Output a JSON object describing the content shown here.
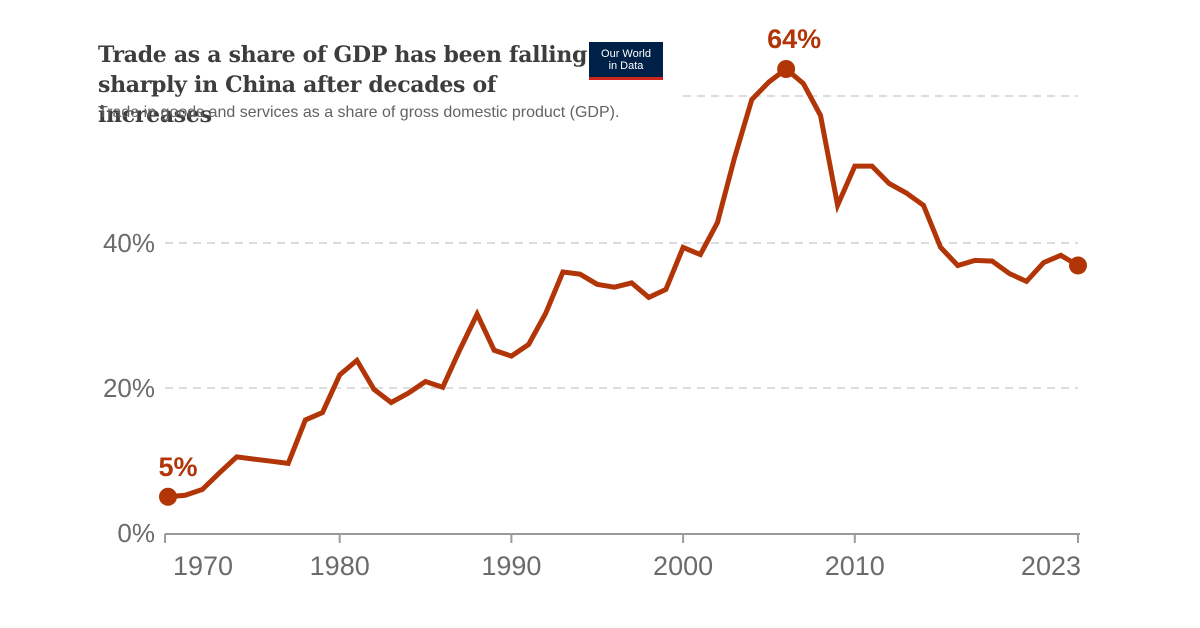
{
  "header": {
    "title": "Trade as a share of GDP has been falling sharply in China after decades of increases",
    "subtitle": "Trade in goods and services as a share of gross domestic product (GDP).",
    "logo_line1": "Our World",
    "logo_line2": "in Data"
  },
  "colors": {
    "line": "#b13507",
    "grid": "#dddddd",
    "axis": "#6b6b6b",
    "logo_bg": "#002147",
    "logo_accent": "#ce261e"
  },
  "chart_data": {
    "type": "line",
    "title": "Trade as a share of GDP has been falling sharply in China after decades of increases",
    "subtitle": "Trade in goods and services as a share of gross domestic product (GDP).",
    "xlabel": "",
    "ylabel": "",
    "xlim": [
      1970,
      2023
    ],
    "ylim": [
      0,
      64
    ],
    "grid": true,
    "legend": "none",
    "y_ticks": [
      "0%",
      "20%",
      "40%"
    ],
    "x_ticks": [
      "1970",
      "1980",
      "1990",
      "2000",
      "2010",
      "2023"
    ],
    "series": [
      {
        "x": [
          1970,
          1971,
          1972,
          1973,
          1974,
          1975,
          1976,
          1977,
          1978,
          1979,
          1980,
          1981,
          1982,
          1983,
          1984,
          1985,
          1986,
          1987,
          1988,
          1989,
          1990,
          1991,
          1992,
          1993,
          1994,
          1995,
          1996,
          1997,
          1998,
          1999,
          2000,
          2001,
          2002,
          2003,
          2004,
          2005,
          2006,
          2007,
          2008,
          2009,
          2010,
          2011,
          2012,
          2013,
          2014,
          2015,
          2016,
          2017,
          2018,
          2019,
          2020,
          2021,
          2022,
          2023
        ],
        "values": [
          5.0,
          5.2,
          6.0,
          8.3,
          10.5,
          10.2,
          9.9,
          9.6,
          15.6,
          16.6,
          21.8,
          23.8,
          19.8,
          18.0,
          19.3,
          20.9,
          20.1,
          25.3,
          30.2,
          25.2,
          24.4,
          26.0,
          30.3,
          36.0,
          35.7,
          34.3,
          33.9,
          34.5,
          32.5,
          33.6,
          39.4,
          38.4,
          42.8,
          51.8,
          59.8,
          62.2,
          64.0,
          62.0,
          57.6,
          45.2,
          50.6,
          50.6,
          48.2,
          46.9,
          45.2,
          39.4,
          36.9,
          37.6,
          37.5,
          35.8,
          34.7,
          37.3,
          38.3,
          36.9
        ]
      }
    ],
    "annotations": [
      {
        "label": "5%",
        "x": 1970,
        "y": 5.0
      },
      {
        "label": "64%",
        "x": 2006,
        "y": 64.0
      }
    ]
  }
}
